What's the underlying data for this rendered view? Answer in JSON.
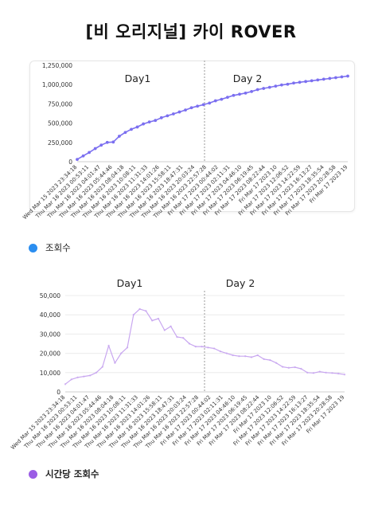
{
  "title": "[비 오리지널] 카이 ROVER",
  "legend1": {
    "label": "조회수",
    "color": "#2b8ef0"
  },
  "legend2": {
    "label": "시간당 조회수",
    "color": "#9b5de5"
  },
  "chart_data": [
    {
      "type": "line",
      "day_labels": [
        "Day1",
        "Day 2"
      ],
      "ylim": [
        0,
        1250000
      ],
      "yticks": [
        "1,250,000",
        "1,000,000",
        "750,000",
        "500,000",
        "250,000",
        "0"
      ],
      "grid": false,
      "xtick_labels": [
        "Wed Mar 15 2023 23:34:18",
        "Thu Mar 16 2023 00:53:11",
        "Thu Mar 16 2023 04:01:47",
        "Thu Mar 16 2023 05:44:46",
        "Thu Mar 16 2023 08:04:18",
        "Thu Mar 16 2023 10:08:11",
        "Thu Mar 16 2023 11:31:33",
        "Thu Mar 16 2023 14:01:26",
        "Thu Mar 16 2023 15:58:11",
        "Thu Mar 16 2023 18:47:31",
        "Thu Mar 16 2023 20:03:24",
        "Thu Mar 16 2023 22:57:28",
        "Fri Mar 17 2023 00:44:02",
        "Fri Mar 17 2023 02:11:31",
        "Fri Mar 17 2023 04:46:10",
        "Fri Mar 17 2023 06:19:45",
        "Fri Mar 17 2023 08:22:44",
        "Fri Mar 17 2023 10",
        "Fri Mar 17 2023 12:06:52",
        "Fri Mar 17 2023 14:22:59",
        "Fri Mar 17 2023 16:13:27",
        "Fri Mar 17 2023 18:35:54",
        "Fri Mar 17 2023 20:28:58",
        "Fri Mar 17 2023 19"
      ],
      "series": [
        {
          "name": "조회수",
          "color": "#7b6ff0",
          "values": [
            30000,
            75000,
            120000,
            170000,
            215000,
            250000,
            255000,
            330000,
            380000,
            420000,
            450000,
            490000,
            515000,
            535000,
            570000,
            595000,
            620000,
            645000,
            670000,
            700000,
            720000,
            740000,
            760000,
            790000,
            810000,
            835000,
            860000,
            875000,
            890000,
            910000,
            935000,
            950000,
            965000,
            980000,
            995000,
            1005000,
            1020000,
            1030000,
            1040000,
            1050000,
            1060000,
            1070000,
            1080000,
            1090000,
            1100000,
            1110000
          ]
        }
      ]
    },
    {
      "type": "line",
      "day_labels": [
        "Day1",
        "Day 2"
      ],
      "ylim": [
        0,
        50000
      ],
      "yticks": [
        "50,000",
        "40,000",
        "30,000",
        "20,000",
        "10,000",
        "0"
      ],
      "grid": true,
      "xtick_labels": [
        "Wed Mar 15 2023 23:34:18",
        "Thu Mar 16 2023 00:53:11",
        "Thu Mar 16 2023 04:01:47",
        "Thu Mar 16 2023 05:44:46",
        "Thu Mar 16 2023 08:04:18",
        "Thu Mar 16 2023 10:08:11",
        "Thu Mar 16 2023 11:31:33",
        "Thu Mar 16 2023 14:01:26",
        "Thu Mar 16 2023 15:58:11",
        "Thu Mar 16 2023 18:47:31",
        "Thu Mar 16 2023 20:03:24",
        "Thu Mar 16 2023 22:57:28",
        "Fri Mar 17 2023 00:44:02",
        "Fri Mar 17 2023 02:11:31",
        "Fri Mar 17 2023 04:46:10",
        "Fri Mar 17 2023 06:19:45",
        "Fri Mar 17 2023 08:22:44",
        "Fri Mar 17 2023 10",
        "Fri Mar 17 2023 12:06:52",
        "Fri Mar 17 2023 14:22:59",
        "Fri Mar 17 2023 16:13:27",
        "Fri Mar 17 2023 18:35:54",
        "Fri Mar 17 2023 20:28:58",
        "Fri Mar 17 2023 19"
      ],
      "series": [
        {
          "name": "시간당 조회수",
          "color": "#c8a6f0",
          "values": [
            4000,
            6500,
            7500,
            8000,
            8500,
            10000,
            13000,
            24000,
            15000,
            20000,
            23000,
            40000,
            43000,
            42000,
            37000,
            38000,
            32000,
            34000,
            28500,
            28000,
            25000,
            23500,
            23500,
            23000,
            22500,
            21000,
            20000,
            19000,
            18500,
            18500,
            18000,
            19000,
            17000,
            16500,
            15000,
            13000,
            12500,
            12800,
            12000,
            10000,
            9800,
            10500,
            10000,
            9800,
            9500,
            9000
          ]
        }
      ]
    }
  ]
}
